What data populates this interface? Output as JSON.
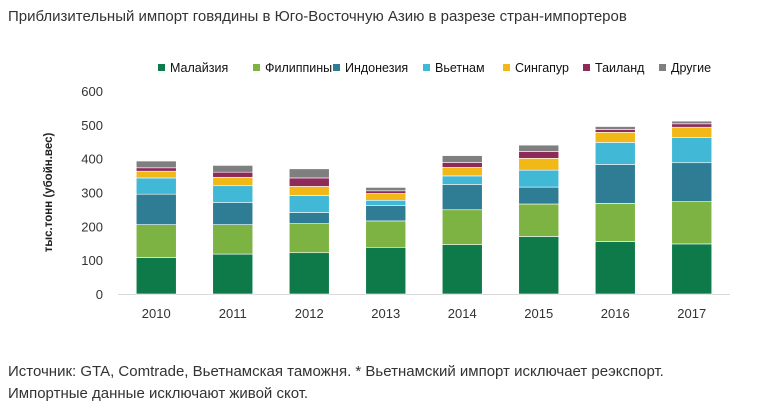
{
  "page": {
    "title": "Приблизительный импорт говядины в Юго-Восточную Азию в разрезе стран-импортеров",
    "source_line1": "Источник: GTA, Comtrade, Вьетнамская таможня. * Вьетнамский импорт исключает реэкспорт.",
    "source_line2": "Импортные данные исключают живой скот."
  },
  "chart_data": {
    "type": "bar",
    "stacked": true,
    "title": "",
    "xlabel": "",
    "ylabel": "тыс.тонн (убойн.вес)",
    "ylim": [
      0,
      600
    ],
    "yticks": [
      0,
      100,
      200,
      300,
      400,
      500,
      600
    ],
    "grid": false,
    "legend": "top",
    "categories": [
      "2010",
      "2011",
      "2012",
      "2013",
      "2014",
      "2015",
      "2016",
      "2017"
    ],
    "series": [
      {
        "name": "Малайзия",
        "color": "#0e7a4a",
        "values": [
          108,
          118,
          122,
          138,
          146,
          170,
          155,
          148
        ]
      },
      {
        "name": "Филиппины",
        "color": "#7cb342",
        "values": [
          97,
          87,
          86,
          78,
          103,
          96,
          113,
          125
        ]
      },
      {
        "name": "Индонезия",
        "color": "#2e7d95",
        "values": [
          90,
          65,
          33,
          45,
          75,
          50,
          115,
          115
        ]
      },
      {
        "name": "Вьетнам",
        "color": "#40b8d6",
        "values": [
          48,
          50,
          50,
          16,
          25,
          50,
          65,
          75
        ]
      },
      {
        "name": "Сингапур",
        "color": "#f2b818",
        "values": [
          20,
          25,
          27,
          20,
          25,
          35,
          30,
          30
        ]
      },
      {
        "name": "Таиланд",
        "color": "#8e2a5a",
        "values": [
          10,
          15,
          25,
          8,
          15,
          20,
          8,
          10
        ]
      },
      {
        "name": "Другие",
        "color": "#7f7f7f",
        "values": [
          20,
          20,
          27,
          10,
          20,
          19,
          9,
          8
        ]
      }
    ]
  }
}
